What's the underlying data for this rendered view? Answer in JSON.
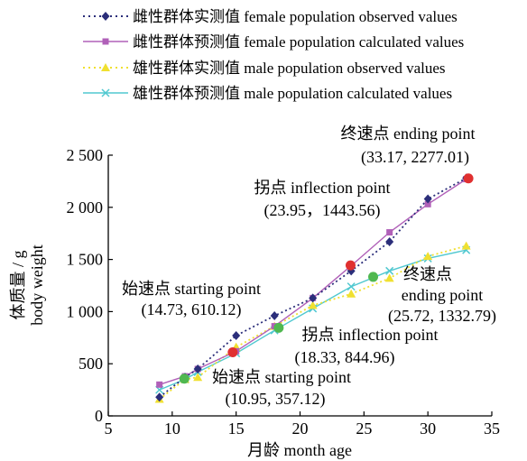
{
  "chart_data": {
    "type": "line",
    "xlabel": "月龄  month age",
    "ylabel_cn": "体质量 / g",
    "ylabel_en": "body weight",
    "xlim": [
      5,
      35
    ],
    "ylim": [
      0,
      2500
    ],
    "xticks": [
      "5",
      "10",
      "15",
      "20",
      "25",
      "30",
      "35"
    ],
    "yticks": [
      "0",
      "500",
      "1 000",
      "1 500",
      "2 000",
      "2 500"
    ],
    "grid": false,
    "legend_position": "top",
    "series": [
      {
        "name": "雌性群体实测值 female population observed values",
        "style": "dotted",
        "marker": "diamond",
        "color": "#2b2e7a",
        "x": [
          9,
          11,
          12,
          15,
          18,
          21,
          24,
          27,
          30,
          33
        ],
        "y": [
          180,
          370,
          450,
          770,
          960,
          1130,
          1390,
          1670,
          2080,
          2280
        ]
      },
      {
        "name": "雌性群体预测值 female population calculated values",
        "style": "solid",
        "marker": "square",
        "color": "#b060b8",
        "x": [
          9,
          11,
          12,
          15,
          18,
          21,
          24,
          27,
          30,
          33
        ],
        "y": [
          300,
          380,
          450,
          620,
          860,
          1130,
          1440,
          1760,
          2030,
          2270
        ]
      },
      {
        "name": "雄性群体实测值 male population observed values",
        "style": "dotted",
        "marker": "triangle",
        "color": "#f0e030",
        "x": [
          9,
          11,
          12,
          15,
          18,
          21,
          24,
          27,
          30,
          33
        ],
        "y": [
          160,
          350,
          370,
          660,
          860,
          1060,
          1170,
          1320,
          1530,
          1630
        ]
      },
      {
        "name": "雄性群体预测值 male population calculated values",
        "style": "solid",
        "marker": "x",
        "color": "#50c8d0",
        "x": [
          9,
          11,
          12,
          15,
          18,
          21,
          24,
          27,
          30,
          33
        ],
        "y": [
          250,
          350,
          420,
          600,
          820,
          1030,
          1240,
          1390,
          1510,
          1590
        ]
      }
    ],
    "special_points": [
      {
        "x": 14.73,
        "y": 610.12,
        "color": "#e03030",
        "label_line1": "始速点 starting point",
        "label_line2": "(14.73, 610.12)"
      },
      {
        "x": 23.95,
        "y": 1443.56,
        "color": "#e03030",
        "label_line1": "拐点 inflection point",
        "label_line2": "(23.95，1443.56)"
      },
      {
        "x": 33.17,
        "y": 2277.01,
        "color": "#e03030",
        "label_line1": "终速点 ending point",
        "label_line2": "(33.17, 2277.01)"
      },
      {
        "x": 10.95,
        "y": 357.12,
        "color": "#50b850",
        "label_line1": "始速点 starting point",
        "label_line2": "(10.95, 357.12)"
      },
      {
        "x": 18.33,
        "y": 844.96,
        "color": "#50b850",
        "label_line1": "拐点 inflection point",
        "label_line2": "(18.33, 844.96)"
      },
      {
        "x": 25.72,
        "y": 1332.79,
        "color": "#50b850",
        "label_line1": "终速点",
        "label_line2": "ending point",
        "label_line3": "(25.72, 1332.79)"
      }
    ]
  }
}
